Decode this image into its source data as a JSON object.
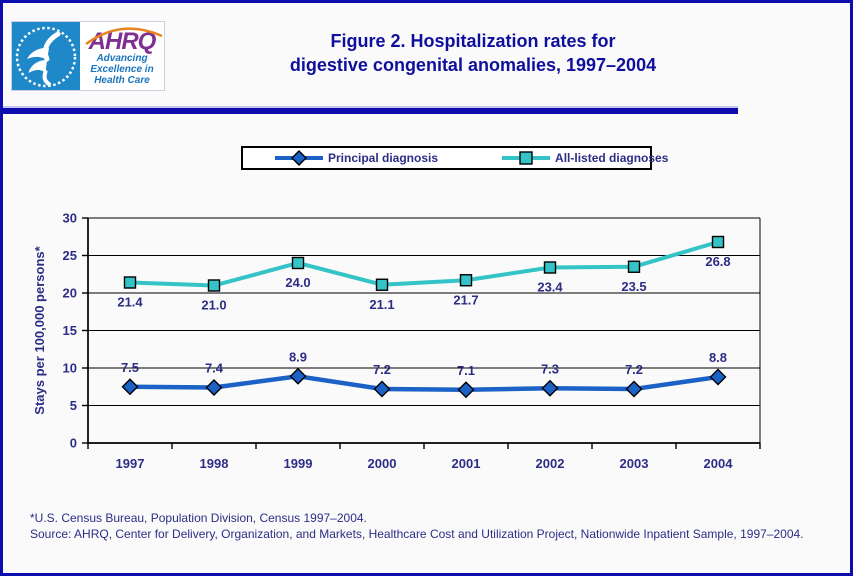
{
  "header": {
    "title_line1": "Figure 2. Hospitalization rates for",
    "title_line2": "digestive congenital anomalies, 1997–2004"
  },
  "logo": {
    "agency": "AHRQ",
    "tagline_line1": "Advancing",
    "tagline_line2": "Excellence in",
    "tagline_line3": "Health Care",
    "seal": "hhs-eagle-seal"
  },
  "legend": {
    "items": [
      {
        "label": "Principal diagnosis",
        "marker": "diamond",
        "color": "#1C61C6"
      },
      {
        "label": "All-listed diagnoses",
        "marker": "square",
        "color": "#34C3C6"
      }
    ]
  },
  "chart_data": {
    "type": "line",
    "title": "Figure 2. Hospitalization rates for digestive congenital anomalies, 1997–2004",
    "categories": [
      "1997",
      "1998",
      "1999",
      "2000",
      "2001",
      "2002",
      "2003",
      "2004"
    ],
    "series": [
      {
        "name": "Principal diagnosis",
        "color": "#1C61C6",
        "marker": "diamond",
        "label_position": "above",
        "line_width": 4.5,
        "values": [
          7.5,
          7.4,
          8.9,
          7.2,
          7.1,
          7.3,
          7.2,
          8.8
        ]
      },
      {
        "name": "All-listed diagnoses",
        "color": "#34C3C6",
        "marker": "square",
        "label_position": "below",
        "line_width": 4,
        "values": [
          21.4,
          21.0,
          24.0,
          21.1,
          21.7,
          23.4,
          23.5,
          26.8
        ]
      }
    ],
    "xlabel": "",
    "ylabel": "Stays per 100,000 persons*",
    "ylim": [
      0,
      30
    ],
    "ytick_step": 5,
    "grid": true,
    "legend_position": "top"
  },
  "footnotes": {
    "line1": "*U.S. Census Bureau, Population Division, Census 1997–2004.",
    "line2": "Source: AHRQ, Center for Delivery, Organization, and Markets, Healthcare Cost and Utilization Project, Nationwide Inpatient Sample, 1997–2004."
  },
  "colors": {
    "frame_blue": "#0D0DAD",
    "title_navy": "#0F0F9E",
    "chart_text_navy": "#2D2D86",
    "axis_black": "#000000",
    "page_background": "#FAFAFA",
    "legend_border": "#000000",
    "hhs_blue": "#1E88C9",
    "ahrq_purple": "#7D3090",
    "tagline_blue": "#1B75BC",
    "arc_orange": "#E8831E"
  }
}
